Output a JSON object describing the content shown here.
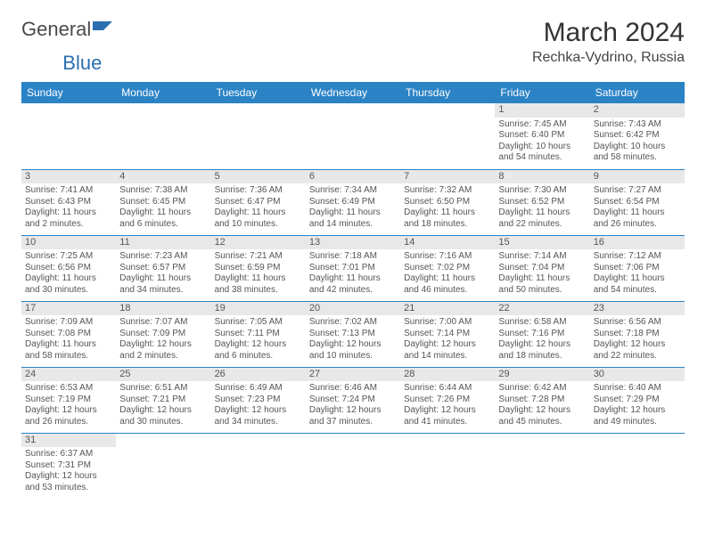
{
  "logo": {
    "general": "General",
    "blue": "Blue"
  },
  "title": "March 2024",
  "location": "Rechka-Vydrino, Russia",
  "colors": {
    "header_bg": "#2b83c6",
    "header_text": "#ffffff",
    "daynum_bg": "#e8e8e8",
    "text": "#555555",
    "border": "#2b83c6",
    "logo_blue": "#2b6fb0"
  },
  "dayHeaders": [
    "Sunday",
    "Monday",
    "Tuesday",
    "Wednesday",
    "Thursday",
    "Friday",
    "Saturday"
  ],
  "weeks": [
    [
      null,
      null,
      null,
      null,
      null,
      {
        "n": "1",
        "sr": "Sunrise: 7:45 AM",
        "ss": "Sunset: 6:40 PM",
        "dl": "Daylight: 10 hours and 54 minutes."
      },
      {
        "n": "2",
        "sr": "Sunrise: 7:43 AM",
        "ss": "Sunset: 6:42 PM",
        "dl": "Daylight: 10 hours and 58 minutes."
      }
    ],
    [
      {
        "n": "3",
        "sr": "Sunrise: 7:41 AM",
        "ss": "Sunset: 6:43 PM",
        "dl": "Daylight: 11 hours and 2 minutes."
      },
      {
        "n": "4",
        "sr": "Sunrise: 7:38 AM",
        "ss": "Sunset: 6:45 PM",
        "dl": "Daylight: 11 hours and 6 minutes."
      },
      {
        "n": "5",
        "sr": "Sunrise: 7:36 AM",
        "ss": "Sunset: 6:47 PM",
        "dl": "Daylight: 11 hours and 10 minutes."
      },
      {
        "n": "6",
        "sr": "Sunrise: 7:34 AM",
        "ss": "Sunset: 6:49 PM",
        "dl": "Daylight: 11 hours and 14 minutes."
      },
      {
        "n": "7",
        "sr": "Sunrise: 7:32 AM",
        "ss": "Sunset: 6:50 PM",
        "dl": "Daylight: 11 hours and 18 minutes."
      },
      {
        "n": "8",
        "sr": "Sunrise: 7:30 AM",
        "ss": "Sunset: 6:52 PM",
        "dl": "Daylight: 11 hours and 22 minutes."
      },
      {
        "n": "9",
        "sr": "Sunrise: 7:27 AM",
        "ss": "Sunset: 6:54 PM",
        "dl": "Daylight: 11 hours and 26 minutes."
      }
    ],
    [
      {
        "n": "10",
        "sr": "Sunrise: 7:25 AM",
        "ss": "Sunset: 6:56 PM",
        "dl": "Daylight: 11 hours and 30 minutes."
      },
      {
        "n": "11",
        "sr": "Sunrise: 7:23 AM",
        "ss": "Sunset: 6:57 PM",
        "dl": "Daylight: 11 hours and 34 minutes."
      },
      {
        "n": "12",
        "sr": "Sunrise: 7:21 AM",
        "ss": "Sunset: 6:59 PM",
        "dl": "Daylight: 11 hours and 38 minutes."
      },
      {
        "n": "13",
        "sr": "Sunrise: 7:18 AM",
        "ss": "Sunset: 7:01 PM",
        "dl": "Daylight: 11 hours and 42 minutes."
      },
      {
        "n": "14",
        "sr": "Sunrise: 7:16 AM",
        "ss": "Sunset: 7:02 PM",
        "dl": "Daylight: 11 hours and 46 minutes."
      },
      {
        "n": "15",
        "sr": "Sunrise: 7:14 AM",
        "ss": "Sunset: 7:04 PM",
        "dl": "Daylight: 11 hours and 50 minutes."
      },
      {
        "n": "16",
        "sr": "Sunrise: 7:12 AM",
        "ss": "Sunset: 7:06 PM",
        "dl": "Daylight: 11 hours and 54 minutes."
      }
    ],
    [
      {
        "n": "17",
        "sr": "Sunrise: 7:09 AM",
        "ss": "Sunset: 7:08 PM",
        "dl": "Daylight: 11 hours and 58 minutes."
      },
      {
        "n": "18",
        "sr": "Sunrise: 7:07 AM",
        "ss": "Sunset: 7:09 PM",
        "dl": "Daylight: 12 hours and 2 minutes."
      },
      {
        "n": "19",
        "sr": "Sunrise: 7:05 AM",
        "ss": "Sunset: 7:11 PM",
        "dl": "Daylight: 12 hours and 6 minutes."
      },
      {
        "n": "20",
        "sr": "Sunrise: 7:02 AM",
        "ss": "Sunset: 7:13 PM",
        "dl": "Daylight: 12 hours and 10 minutes."
      },
      {
        "n": "21",
        "sr": "Sunrise: 7:00 AM",
        "ss": "Sunset: 7:14 PM",
        "dl": "Daylight: 12 hours and 14 minutes."
      },
      {
        "n": "22",
        "sr": "Sunrise: 6:58 AM",
        "ss": "Sunset: 7:16 PM",
        "dl": "Daylight: 12 hours and 18 minutes."
      },
      {
        "n": "23",
        "sr": "Sunrise: 6:56 AM",
        "ss": "Sunset: 7:18 PM",
        "dl": "Daylight: 12 hours and 22 minutes."
      }
    ],
    [
      {
        "n": "24",
        "sr": "Sunrise: 6:53 AM",
        "ss": "Sunset: 7:19 PM",
        "dl": "Daylight: 12 hours and 26 minutes."
      },
      {
        "n": "25",
        "sr": "Sunrise: 6:51 AM",
        "ss": "Sunset: 7:21 PM",
        "dl": "Daylight: 12 hours and 30 minutes."
      },
      {
        "n": "26",
        "sr": "Sunrise: 6:49 AM",
        "ss": "Sunset: 7:23 PM",
        "dl": "Daylight: 12 hours and 34 minutes."
      },
      {
        "n": "27",
        "sr": "Sunrise: 6:46 AM",
        "ss": "Sunset: 7:24 PM",
        "dl": "Daylight: 12 hours and 37 minutes."
      },
      {
        "n": "28",
        "sr": "Sunrise: 6:44 AM",
        "ss": "Sunset: 7:26 PM",
        "dl": "Daylight: 12 hours and 41 minutes."
      },
      {
        "n": "29",
        "sr": "Sunrise: 6:42 AM",
        "ss": "Sunset: 7:28 PM",
        "dl": "Daylight: 12 hours and 45 minutes."
      },
      {
        "n": "30",
        "sr": "Sunrise: 6:40 AM",
        "ss": "Sunset: 7:29 PM",
        "dl": "Daylight: 12 hours and 49 minutes."
      }
    ],
    [
      {
        "n": "31",
        "sr": "Sunrise: 6:37 AM",
        "ss": "Sunset: 7:31 PM",
        "dl": "Daylight: 12 hours and 53 minutes."
      },
      null,
      null,
      null,
      null,
      null,
      null
    ]
  ]
}
